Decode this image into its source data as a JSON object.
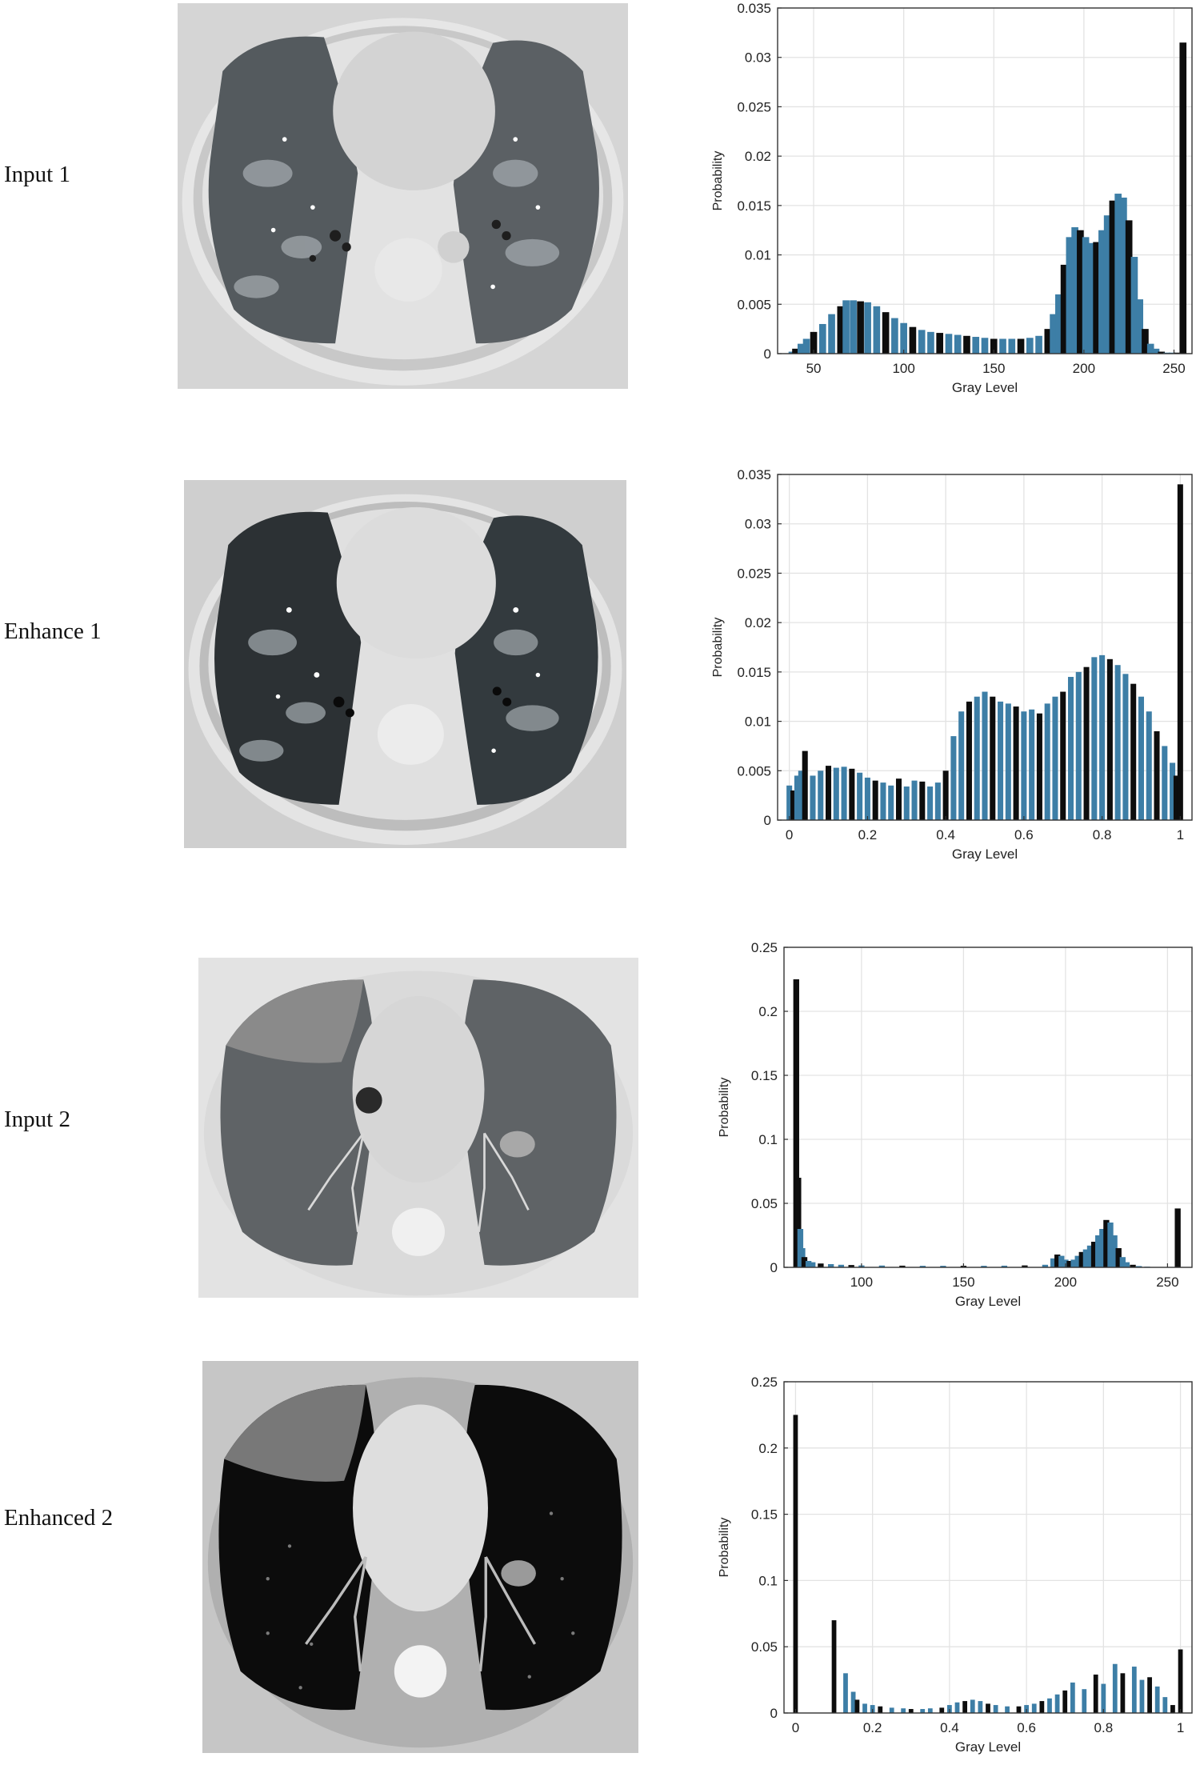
{
  "rows": [
    {
      "label": "Input 1",
      "scan_name": "input-1-ct-scan"
    },
    {
      "label": "Enhance 1",
      "scan_name": "enhance-1-ct-scan"
    },
    {
      "label": "Input 2",
      "scan_name": "input-2-ct-scan"
    },
    {
      "label": "Enhanced 2",
      "scan_name": "enhanced-2-ct-scan"
    }
  ],
  "colors": {
    "bar_blue": "#3d7ea6",
    "bar_dark": "#0d0d0d",
    "grid": "#e3e3e3",
    "axis": "#333333"
  },
  "chart_data": [
    {
      "type": "bar",
      "xlabel": "Gray Level",
      "ylabel": "Probability",
      "xlim": [
        30,
        260
      ],
      "ylim": [
        0,
        0.035
      ],
      "xticks": [
        50,
        100,
        150,
        200,
        250
      ],
      "yticks": [
        0,
        0.005,
        0.01,
        0.015,
        0.02,
        0.025,
        0.03,
        0.035
      ],
      "xtick_labels": [
        "50",
        "100",
        "150",
        "200",
        "250"
      ],
      "ytick_labels": [
        "0",
        "0.005",
        "0.01",
        "0.015",
        "0.02",
        "0.025",
        "0.03",
        "0.035"
      ],
      "grid": true,
      "bin_width": 1.6,
      "x": [
        38,
        40,
        43,
        46,
        50,
        55,
        60,
        65,
        68,
        72,
        76,
        80,
        85,
        90,
        95,
        100,
        105,
        110,
        115,
        120,
        125,
        130,
        135,
        140,
        145,
        150,
        155,
        160,
        165,
        170,
        175,
        180,
        183,
        186,
        189,
        192,
        195,
        198,
        201,
        204,
        207,
        210,
        213,
        216,
        219,
        222,
        225,
        228,
        231,
        234,
        237,
        240,
        243,
        246,
        249,
        252,
        255
      ],
      "y": [
        0.0002,
        0.0005,
        0.001,
        0.0015,
        0.0022,
        0.003,
        0.004,
        0.0048,
        0.0054,
        0.0054,
        0.0053,
        0.0052,
        0.0048,
        0.0042,
        0.0036,
        0.0031,
        0.0027,
        0.0024,
        0.0022,
        0.0021,
        0.002,
        0.0019,
        0.0018,
        0.0017,
        0.0016,
        0.0015,
        0.0015,
        0.0015,
        0.0015,
        0.0016,
        0.0018,
        0.0025,
        0.004,
        0.006,
        0.009,
        0.0118,
        0.0128,
        0.0125,
        0.0118,
        0.0112,
        0.0113,
        0.0125,
        0.014,
        0.0155,
        0.0162,
        0.0158,
        0.0135,
        0.0098,
        0.0055,
        0.0025,
        0.001,
        0.0005,
        0.0002,
        0.0001,
        0.0001,
        0.0001,
        0.0315
      ]
    },
    {
      "type": "bar",
      "xlabel": "Gray Level",
      "ylabel": "Probability",
      "xlim": [
        -0.03,
        1.03
      ],
      "ylim": [
        0,
        0.035
      ],
      "xticks": [
        0,
        0.2,
        0.4,
        0.6,
        0.8,
        1
      ],
      "yticks": [
        0,
        0.005,
        0.01,
        0.015,
        0.02,
        0.025,
        0.03,
        0.035
      ],
      "xtick_labels": [
        "0",
        "0.2",
        "0.4",
        "0.6",
        "0.8",
        "1"
      ],
      "ytick_labels": [
        "0",
        "0.005",
        "0.01",
        "0.015",
        "0.02",
        "0.025",
        "0.03",
        "0.035"
      ],
      "grid": true,
      "bin_width": 0.006,
      "x": [
        0.0,
        0.01,
        0.02,
        0.03,
        0.04,
        0.06,
        0.08,
        0.1,
        0.12,
        0.14,
        0.16,
        0.18,
        0.2,
        0.22,
        0.24,
        0.26,
        0.28,
        0.3,
        0.32,
        0.34,
        0.36,
        0.38,
        0.4,
        0.42,
        0.44,
        0.46,
        0.48,
        0.5,
        0.52,
        0.54,
        0.56,
        0.58,
        0.6,
        0.62,
        0.64,
        0.66,
        0.68,
        0.7,
        0.72,
        0.74,
        0.76,
        0.78,
        0.8,
        0.82,
        0.84,
        0.86,
        0.88,
        0.9,
        0.92,
        0.94,
        0.96,
        0.98,
        0.99,
        1.0
      ],
      "y": [
        0.0035,
        0.003,
        0.0045,
        0.005,
        0.007,
        0.0045,
        0.005,
        0.0055,
        0.0053,
        0.0054,
        0.0052,
        0.0048,
        0.0043,
        0.004,
        0.0038,
        0.0035,
        0.0042,
        0.0034,
        0.004,
        0.0039,
        0.0034,
        0.0038,
        0.005,
        0.0085,
        0.011,
        0.012,
        0.0125,
        0.013,
        0.0125,
        0.012,
        0.0118,
        0.0115,
        0.011,
        0.0112,
        0.0108,
        0.0118,
        0.0125,
        0.013,
        0.0145,
        0.015,
        0.0155,
        0.0165,
        0.0167,
        0.0163,
        0.0157,
        0.0148,
        0.0138,
        0.0125,
        0.011,
        0.009,
        0.0075,
        0.0058,
        0.0045,
        0.034
      ]
    },
    {
      "type": "bar",
      "xlabel": "Gray Level",
      "ylabel": "Probability",
      "xlim": [
        62,
        262
      ],
      "ylim": [
        0,
        0.25
      ],
      "xticks": [
        100,
        150,
        200,
        250
      ],
      "yticks": [
        0,
        0.05,
        0.1,
        0.15,
        0.2,
        0.25
      ],
      "xtick_labels": [
        "100",
        "150",
        "200",
        "250"
      ],
      "ytick_labels": [
        "0",
        "0.05",
        "0.1",
        "0.15",
        "0.2",
        "0.25"
      ],
      "grid": true,
      "bin_width": 1.2,
      "x": [
        68,
        69,
        70,
        71,
        72,
        74,
        76,
        80,
        85,
        90,
        95,
        100,
        110,
        120,
        130,
        140,
        150,
        160,
        170,
        180,
        190,
        194,
        196,
        198,
        200,
        202,
        204,
        206,
        208,
        210,
        212,
        214,
        216,
        218,
        220,
        222,
        224,
        226,
        228,
        230,
        233,
        236,
        240,
        245,
        250,
        255
      ],
      "y": [
        0.225,
        0.07,
        0.03,
        0.015,
        0.008,
        0.005,
        0.004,
        0.003,
        0.0025,
        0.002,
        0.0018,
        0.0015,
        0.0014,
        0.0013,
        0.0012,
        0.0012,
        0.0012,
        0.0012,
        0.0013,
        0.0015,
        0.002,
        0.007,
        0.01,
        0.009,
        0.006,
        0.005,
        0.006,
        0.009,
        0.012,
        0.014,
        0.017,
        0.02,
        0.025,
        0.03,
        0.037,
        0.035,
        0.025,
        0.015,
        0.008,
        0.004,
        0.002,
        0.001,
        0.0005,
        0.0003,
        0.0002,
        0.046
      ]
    },
    {
      "type": "bar",
      "xlabel": "Gray Level",
      "ylabel": "Probability",
      "xlim": [
        -0.03,
        1.03
      ],
      "ylim": [
        0,
        0.25
      ],
      "xticks": [
        0,
        0.2,
        0.4,
        0.6,
        0.8,
        1
      ],
      "yticks": [
        0,
        0.05,
        0.1,
        0.15,
        0.2,
        0.25
      ],
      "xtick_labels": [
        "0",
        "0.2",
        "0.4",
        "0.6",
        "0.8",
        "1"
      ],
      "ytick_labels": [
        "0",
        "0.05",
        "0.1",
        "0.15",
        "0.2",
        "0.25"
      ],
      "grid": true,
      "bin_width": 0.005,
      "x": [
        0.0,
        0.1,
        0.13,
        0.15,
        0.16,
        0.18,
        0.2,
        0.22,
        0.25,
        0.28,
        0.3,
        0.33,
        0.35,
        0.38,
        0.4,
        0.42,
        0.44,
        0.46,
        0.48,
        0.5,
        0.52,
        0.55,
        0.58,
        0.6,
        0.62,
        0.64,
        0.66,
        0.68,
        0.7,
        0.72,
        0.75,
        0.78,
        0.8,
        0.83,
        0.85,
        0.88,
        0.9,
        0.92,
        0.94,
        0.96,
        0.98,
        1.0
      ],
      "y": [
        0.225,
        0.07,
        0.03,
        0.016,
        0.01,
        0.007,
        0.006,
        0.005,
        0.004,
        0.0035,
        0.003,
        0.003,
        0.0035,
        0.004,
        0.006,
        0.008,
        0.009,
        0.01,
        0.009,
        0.007,
        0.006,
        0.005,
        0.005,
        0.006,
        0.007,
        0.009,
        0.011,
        0.014,
        0.017,
        0.023,
        0.018,
        0.029,
        0.022,
        0.037,
        0.03,
        0.035,
        0.025,
        0.027,
        0.02,
        0.012,
        0.006,
        0.048
      ]
    }
  ]
}
